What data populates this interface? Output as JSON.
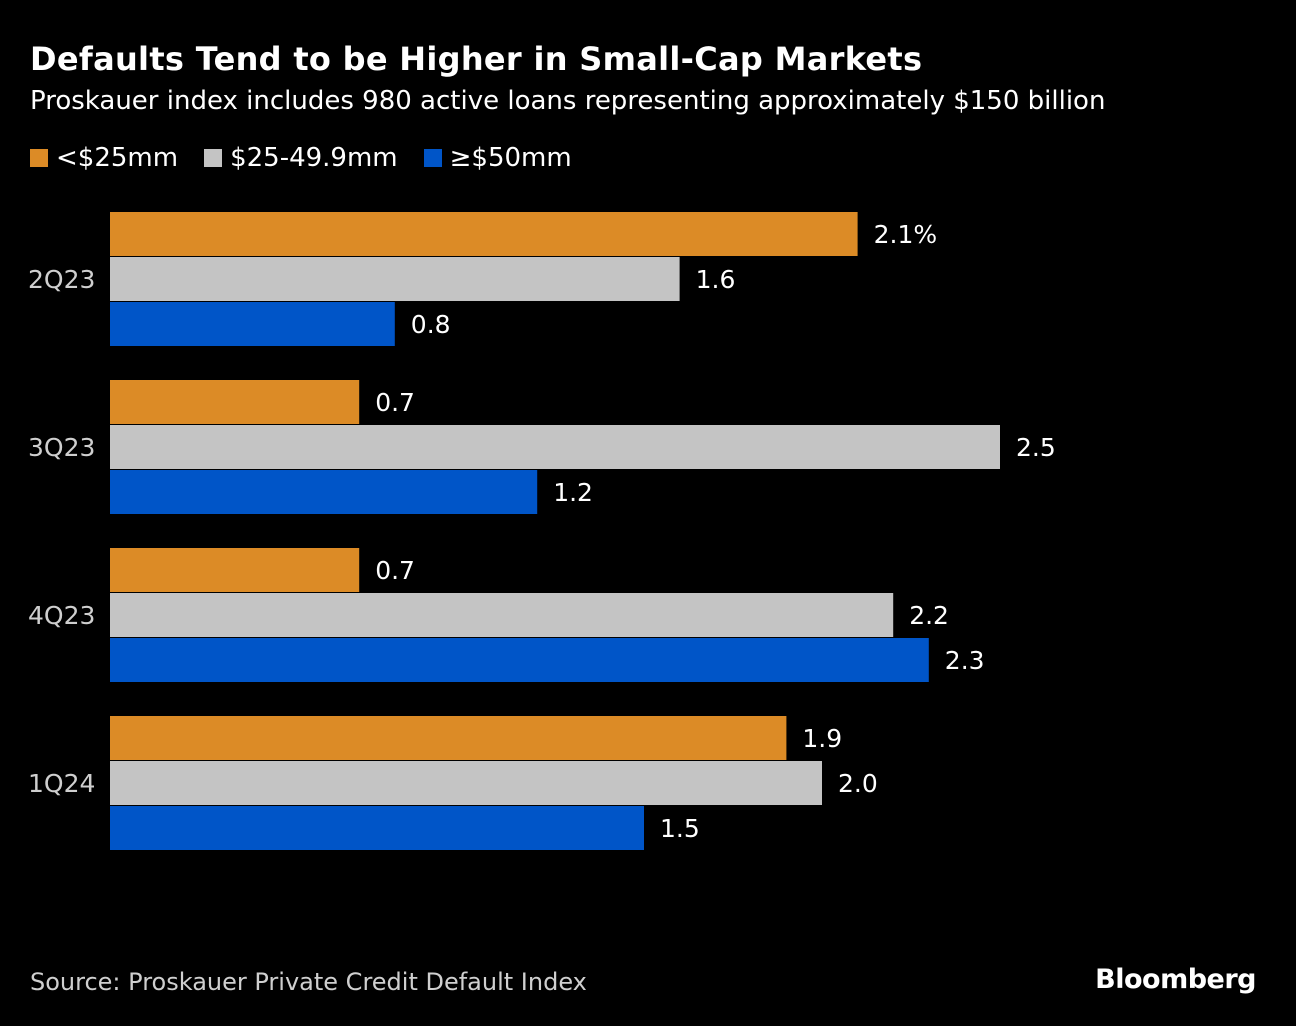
{
  "chart_data": {
    "type": "bar",
    "orientation": "horizontal",
    "title": "Defaults Tend to be Higher in Small-Cap Markets",
    "subtitle": "Proskauer index includes 980 active loans representing approximately $150 billion",
    "categories": [
      "2Q23",
      "3Q23",
      "4Q23",
      "1Q24"
    ],
    "series": [
      {
        "name": "<$25mm",
        "color": "#dc8b26",
        "values": [
          2.1,
          0.7,
          0.7,
          1.9
        ],
        "labels": [
          "2.1%",
          "0.7",
          "0.7",
          "1.9"
        ]
      },
      {
        "name": "$25-49.9mm",
        "color": "#c4c4c4",
        "values": [
          1.6,
          2.5,
          2.2,
          2.0
        ],
        "labels": [
          "1.6",
          "2.5",
          "2.2",
          "2.0"
        ]
      },
      {
        "name": "≥$50mm",
        "color": "#0055c8",
        "values": [
          0.8,
          1.2,
          2.3,
          1.5
        ],
        "labels": [
          "0.8",
          "1.2",
          "2.3",
          "1.5"
        ]
      }
    ],
    "xlim": [
      0,
      2.5
    ],
    "grid": false,
    "legend": "top-left",
    "unit": "%"
  },
  "footer": {
    "source": "Source: Proskauer Private Credit Default Index",
    "brand": "Bloomberg"
  }
}
